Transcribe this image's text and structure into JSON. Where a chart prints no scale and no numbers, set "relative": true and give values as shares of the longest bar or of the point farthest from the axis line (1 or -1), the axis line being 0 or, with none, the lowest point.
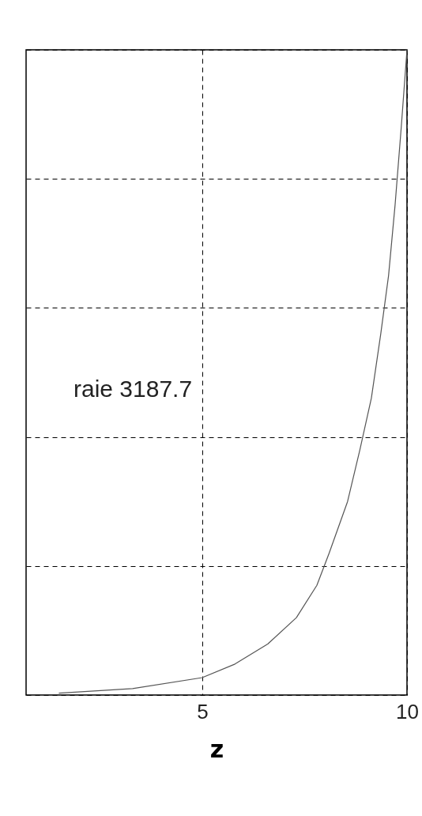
{
  "chart_data": {
    "type": "line",
    "relative": true,
    "xlabel": "z",
    "annotations": [
      "raie 3187.7"
    ],
    "x": [
      1.5,
      3.3,
      5,
      5.8,
      6.6,
      7.3,
      7.8,
      8.1,
      8.55,
      8.85,
      9.13,
      9.36,
      9.55,
      9.71,
      9.86,
      10
    ],
    "values": [
      0.003,
      0.01,
      0.027,
      0.048,
      0.079,
      0.12,
      0.17,
      0.22,
      0.3,
      0.38,
      0.46,
      0.56,
      0.65,
      0.76,
      0.88,
      1
    ],
    "color": "#555555",
    "xlim": [
      0.7,
      10
    ],
    "xticks": [
      5,
      10
    ],
    "grid": true,
    "line_style": "solid",
    "marker": "none"
  }
}
